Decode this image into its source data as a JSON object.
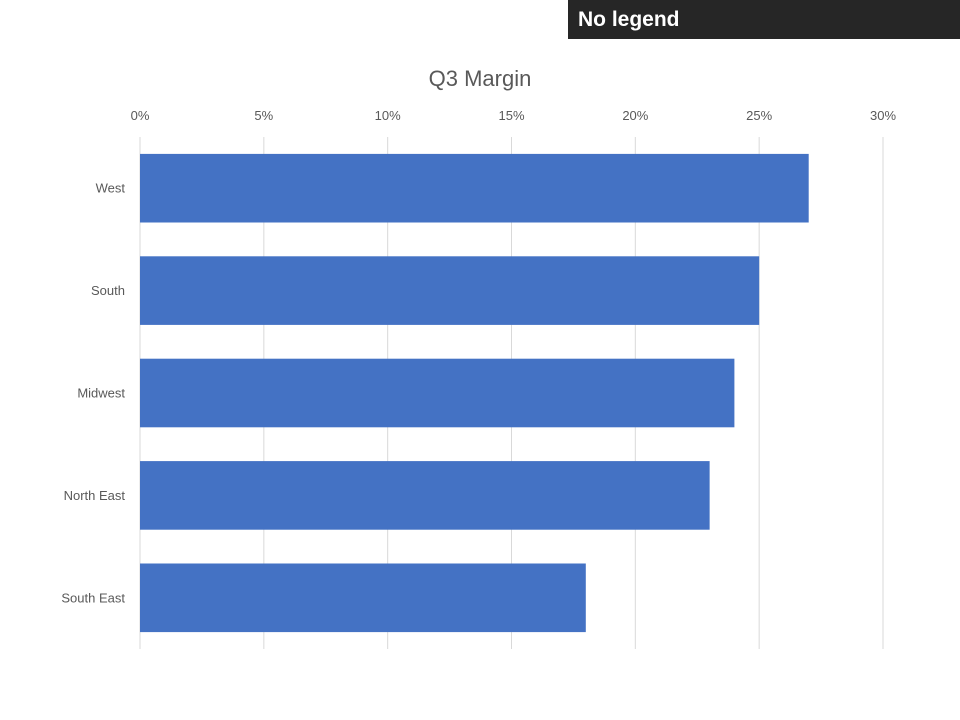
{
  "badge": {
    "text": "No legend"
  },
  "chart_data": {
    "type": "bar",
    "orientation": "horizontal",
    "title": "Q3 Margin",
    "xlabel": "",
    "ylabel": "",
    "categories": [
      "West",
      "South",
      "Midwest",
      "North East",
      "South East"
    ],
    "values": [
      27,
      25,
      24,
      23,
      18
    ],
    "value_format": "percent",
    "xlim": [
      0,
      30
    ],
    "xticks": [
      "0%",
      "5%",
      "10%",
      "15%",
      "20%",
      "25%",
      "30%"
    ],
    "xtick_values": [
      0,
      5,
      10,
      15,
      20,
      25,
      30
    ],
    "x_axis_position": "top",
    "grid": true,
    "legend": "none",
    "colors": {
      "bar": "#4472C4",
      "grid": "#D9D9D9",
      "text": "#595959"
    }
  }
}
